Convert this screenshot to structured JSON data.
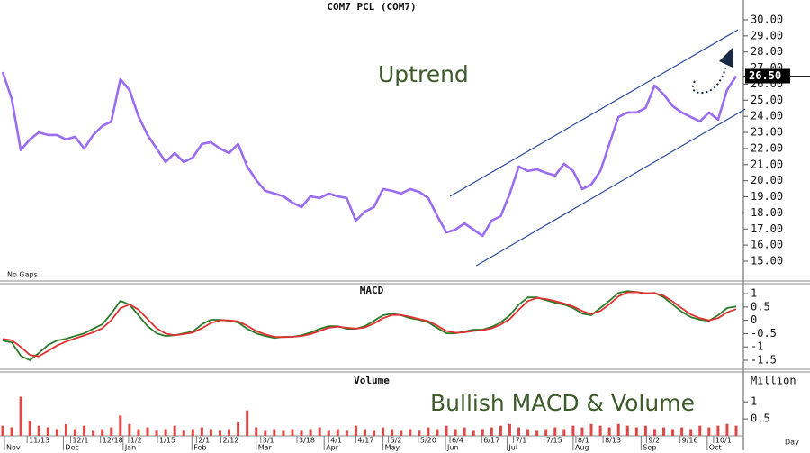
{
  "chart_data": [
    {
      "type": "line",
      "title": "COM7 PCL (COM7)",
      "values": [
        26.75,
        25.08,
        21.9,
        22.56,
        23.0,
        22.84,
        22.84,
        22.56,
        22.73,
        22.0,
        22.84,
        23.4,
        23.68,
        26.31,
        25.64,
        24.0,
        22.84,
        22.0,
        21.16,
        21.72,
        21.16,
        21.44,
        22.28,
        22.39,
        22.0,
        21.72,
        22.28,
        20.88,
        20.04,
        19.37,
        19.2,
        19.03,
        18.64,
        18.36,
        19.03,
        18.92,
        19.2,
        19.03,
        18.92,
        17.52,
        18.08,
        18.36,
        19.48,
        19.37,
        19.2,
        19.48,
        19.31,
        18.92,
        17.8,
        16.79,
        16.96,
        17.35,
        16.96,
        16.57,
        17.52,
        17.8,
        19.2,
        20.88,
        20.6,
        20.71,
        20.49,
        20.32,
        21.05,
        20.6,
        19.48,
        19.76,
        20.6,
        22.28,
        23.96,
        24.24,
        24.24,
        24.52,
        25.91,
        25.36,
        24.63,
        24.24,
        23.96,
        23.68,
        24.24,
        23.79,
        25.64,
        26.5
      ],
      "color": "#9b6bf0",
      "ylim": [
        13.88,
        31.23
      ],
      "yticks": [
        {
          "value": 15,
          "label": "15.00"
        },
        {
          "value": 16,
          "label": "16.00"
        },
        {
          "value": 17,
          "label": "17.00"
        },
        {
          "value": 18,
          "label": "18.00"
        },
        {
          "value": 19,
          "label": "19.00"
        },
        {
          "value": 20,
          "label": "20.00"
        },
        {
          "value": 21,
          "label": "21.00"
        },
        {
          "value": 22,
          "label": "22.00"
        },
        {
          "value": 23,
          "label": "23.00"
        },
        {
          "value": 24,
          "label": "24.00"
        },
        {
          "value": 25,
          "label": "25.00"
        },
        {
          "value": 26,
          "label": "26.00"
        },
        {
          "value": 27,
          "label": "27.00"
        },
        {
          "value": 28,
          "label": "28.00"
        },
        {
          "value": 29,
          "label": "29.00"
        },
        {
          "value": 30,
          "label": "30.00"
        }
      ],
      "last_price": {
        "value": 26.5,
        "label": "26.50"
      },
      "channels": [
        {
          "x": [
            49.4,
            81.2
          ],
          "y": [
            19.03,
            29.38
          ]
        },
        {
          "x": [
            52.3,
            82
          ],
          "y": [
            14.72,
            24.45
          ]
        }
      ],
      "channel_color": "#2a4a9a",
      "annotations": [
        "Uptrend",
        "No Gaps"
      ]
    },
    {
      "type": "line",
      "title": "MACD",
      "series": [
        {
          "color": "#2a7a2a",
          "values": [
            -0.76,
            -0.83,
            -1.33,
            -1.5,
            -1.23,
            -0.93,
            -0.76,
            -0.69,
            -0.59,
            -0.49,
            -0.32,
            -0.15,
            0.25,
            0.73,
            0.59,
            0.19,
            -0.22,
            -0.49,
            -0.59,
            -0.56,
            -0.49,
            -0.42,
            -0.15,
            0.02,
            0.02,
            -0.02,
            -0.08,
            -0.32,
            -0.49,
            -0.59,
            -0.66,
            -0.62,
            -0.62,
            -0.56,
            -0.46,
            -0.32,
            -0.22,
            -0.22,
            -0.32,
            -0.32,
            -0.22,
            -0.02,
            0.19,
            0.25,
            0.19,
            0.08,
            0.02,
            -0.08,
            -0.29,
            -0.49,
            -0.49,
            -0.42,
            -0.35,
            -0.35,
            -0.25,
            -0.08,
            0.19,
            0.59,
            0.86,
            0.86,
            0.76,
            0.66,
            0.59,
            0.46,
            0.25,
            0.19,
            0.46,
            0.73,
            1.03,
            1.1,
            1.06,
            1.0,
            1.03,
            0.86,
            0.59,
            0.32,
            0.12,
            0.02,
            -0.02,
            0.19,
            0.46,
            0.52
          ]
        },
        {
          "color": "#e03030",
          "values": [
            -0.7,
            -0.75,
            -1.0,
            -1.3,
            -1.35,
            -1.15,
            -0.95,
            -0.8,
            -0.68,
            -0.57,
            -0.45,
            -0.3,
            0.0,
            0.45,
            0.6,
            0.4,
            0.05,
            -0.3,
            -0.5,
            -0.56,
            -0.52,
            -0.46,
            -0.3,
            -0.1,
            0.0,
            0.0,
            -0.04,
            -0.2,
            -0.4,
            -0.53,
            -0.62,
            -0.63,
            -0.62,
            -0.59,
            -0.52,
            -0.4,
            -0.28,
            -0.24,
            -0.28,
            -0.31,
            -0.27,
            -0.12,
            0.08,
            0.2,
            0.2,
            0.13,
            0.05,
            -0.03,
            -0.2,
            -0.4,
            -0.47,
            -0.45,
            -0.4,
            -0.37,
            -0.3,
            -0.16,
            0.05,
            0.4,
            0.72,
            0.84,
            0.8,
            0.72,
            0.63,
            0.52,
            0.35,
            0.23,
            0.35,
            0.6,
            0.9,
            1.05,
            1.06,
            1.02,
            1.02,
            0.92,
            0.7,
            0.45,
            0.22,
            0.08,
            0.0,
            0.08,
            0.3,
            0.42
          ]
        }
      ],
      "ylim": [
        -1.77,
        1.34
      ],
      "yticks": [
        1,
        0.5,
        0,
        -0.5,
        -1,
        -1.5
      ]
    },
    {
      "type": "bar",
      "title": "Volume",
      "values": [
        0.3,
        0.25,
        1.15,
        0.45,
        0.3,
        0.25,
        0.2,
        0.35,
        0.2,
        0.3,
        0.15,
        0.2,
        0.25,
        0.6,
        0.35,
        0.2,
        0.25,
        0.15,
        0.2,
        0.3,
        0.15,
        0.2,
        0.25,
        0.2,
        0.15,
        0.2,
        0.4,
        0.75,
        0.25,
        0.15,
        0.2,
        0.15,
        0.2,
        0.15,
        0.2,
        0.25,
        0.15,
        0.2,
        0.15,
        0.3,
        0.2,
        0.15,
        0.25,
        0.2,
        0.15,
        0.2,
        0.15,
        0.25,
        0.2,
        0.3,
        0.2,
        0.25,
        0.15,
        0.2,
        0.25,
        0.3,
        0.35,
        0.25,
        0.2,
        0.15,
        0.2,
        0.25,
        0.2,
        0.3,
        0.25,
        0.35,
        0.3,
        0.25,
        0.35,
        0.3,
        0.25,
        0.3,
        0.2,
        0.25,
        0.2,
        0.25,
        0.2,
        0.3,
        0.25,
        0.3,
        0.35,
        0.3
      ],
      "color": "#e04848",
      "ylim": [
        0,
        1.8
      ],
      "yticks": [
        1,
        0.5
      ],
      "y_label": "Million",
      "x_label": "Day",
      "annotations": [
        "Bullish MACD & Volume"
      ],
      "xticks": [
        {
          "value": 2.7,
          "label": "11/13"
        },
        {
          "value": 7.5,
          "label": "12/1"
        },
        {
          "value": 10.8,
          "label": "12/18"
        },
        {
          "value": 13.9,
          "label": "1/2"
        },
        {
          "value": 17.1,
          "label": "1/15"
        },
        {
          "value": 21.4,
          "label": "2/1"
        },
        {
          "value": 24.1,
          "label": "2/12"
        },
        {
          "value": 28.5,
          "label": "3/1"
        },
        {
          "value": 32.5,
          "label": "3/18"
        },
        {
          "value": 36.0,
          "label": "4/1"
        },
        {
          "value": 39.0,
          "label": "4/17"
        },
        {
          "value": 42.6,
          "label": "5/2"
        },
        {
          "value": 45.9,
          "label": "5/20"
        },
        {
          "value": 49.4,
          "label": "6/4"
        },
        {
          "value": 52.9,
          "label": "6/17"
        },
        {
          "value": 56.4,
          "label": "7/1"
        },
        {
          "value": 59.8,
          "label": "7/15"
        },
        {
          "value": 63.3,
          "label": "8/1"
        },
        {
          "value": 66.3,
          "label": "8/13"
        },
        {
          "value": 71.1,
          "label": "9/2"
        },
        {
          "value": 74.8,
          "label": "9/16"
        },
        {
          "value": 78.5,
          "label": "10/1"
        }
      ],
      "xticks_months": [
        {
          "value": 0.2,
          "label": "Nov"
        },
        {
          "value": 6.7,
          "label": "Dec"
        },
        {
          "value": 13.3,
          "label": "Jan"
        },
        {
          "value": 20.9,
          "label": "Feb"
        },
        {
          "value": 28.0,
          "label": "Mar"
        },
        {
          "value": 35.5,
          "label": "Apr"
        },
        {
          "value": 42.0,
          "label": "May"
        },
        {
          "value": 48.9,
          "label": "Jun"
        },
        {
          "value": 55.7,
          "label": "Jul"
        },
        {
          "value": 63.0,
          "label": "Aug"
        },
        {
          "value": 70.5,
          "label": "Sep"
        },
        {
          "value": 77.8,
          "label": "Oct"
        }
      ]
    }
  ]
}
